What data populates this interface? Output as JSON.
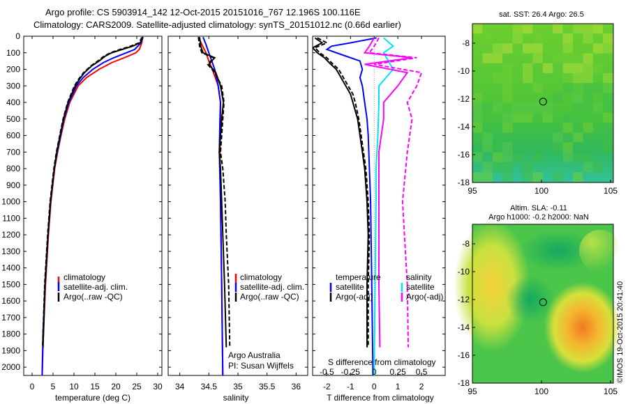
{
  "title_line1": "Argo profile: CS 5903914_142 12-Oct-2015 20151016_767 12.196S 100.116E",
  "title_line2": "Climatology: CARS2009. Satellite-adjusted climatology: synTS_20151012.nc (0.66d earlier)",
  "stamp": "©IMOS 19-Oct-2015 20:41:40",
  "colors": {
    "climatology": "#ff0000",
    "satellite": "#0000ff",
    "argo": "#000000",
    "sal_sat": "#00e5ee",
    "sal_argo": "#ff00ff",
    "map_mid": "#3cbf3c"
  },
  "chart_data": [
    {
      "type": "line",
      "id": "temperature",
      "xlabel": "temperature (deg C)",
      "xlim": [
        -2,
        31
      ],
      "xticks": [
        0,
        5,
        10,
        15,
        20,
        25,
        30
      ],
      "ylim": [
        2050,
        0
      ],
      "yticks": [
        0,
        100,
        200,
        300,
        400,
        500,
        600,
        700,
        800,
        900,
        1000,
        1100,
        1200,
        1300,
        1400,
        1500,
        1600,
        1700,
        1800,
        1900,
        2000
      ],
      "legend": [
        "climatology",
        "satellite-adj. clim.",
        "Argo(..raw -QC)"
      ],
      "series": [
        {
          "name": "climatology",
          "color": "#ff0000",
          "dash": "",
          "depth": [
            5,
            40,
            80,
            100,
            130,
            160,
            200,
            250,
            300,
            400,
            500,
            600,
            700,
            800,
            1000,
            1200,
            1500,
            1800,
            2050
          ],
          "values": [
            26.4,
            26.2,
            25.6,
            24.8,
            22.0,
            19.0,
            16.0,
            13.0,
            11.0,
            9.0,
            7.8,
            6.9,
            6.1,
            5.4,
            4.5,
            3.9,
            3.2,
            2.7,
            2.4
          ]
        },
        {
          "name": "satellite-adj. clim.",
          "color": "#0000ff",
          "dash": "",
          "depth": [
            5,
            40,
            80,
            100,
            130,
            160,
            200,
            250,
            300,
            400,
            500,
            600,
            700,
            800,
            1000,
            1200,
            1500,
            1800,
            2050
          ],
          "values": [
            26.5,
            26.0,
            24.5,
            22.5,
            19.5,
            17.0,
            14.5,
            12.2,
            10.6,
            8.8,
            7.6,
            6.8,
            6.0,
            5.3,
            4.4,
            3.8,
            3.1,
            2.6,
            2.4
          ]
        },
        {
          "name": "Argo(..raw -QC)",
          "color": "#000000",
          "dash": "",
          "depth": [
            5,
            40,
            60,
            80,
            100,
            120,
            150,
            180,
            220,
            260,
            300,
            400,
            500,
            600,
            700,
            800,
            1000,
            1200,
            1500,
            1880
          ],
          "values": [
            26.5,
            25.8,
            24.0,
            21.5,
            19.0,
            17.5,
            16.0,
            14.2,
            12.5,
            11.3,
            10.3,
            8.6,
            7.5,
            6.7,
            5.9,
            5.3,
            4.4,
            3.8,
            3.1,
            2.6
          ]
        },
        {
          "name": "Argo(..raw -QC)",
          "color": "#000000",
          "dash": "6,3",
          "depth": [
            5,
            40,
            60,
            80,
            100,
            120,
            150,
            180,
            220,
            260,
            300,
            400,
            500,
            600,
            700,
            800,
            1000,
            1200,
            1500,
            1880
          ],
          "values": [
            26.3,
            25.5,
            23.5,
            21.0,
            18.7,
            17.2,
            15.7,
            14.0,
            12.3,
            11.1,
            10.1,
            8.5,
            7.4,
            6.6,
            5.8,
            5.2,
            4.3,
            3.7,
            3.0,
            2.5
          ]
        }
      ]
    },
    {
      "type": "line",
      "id": "salinity",
      "xlabel": "salinity",
      "xlim": [
        33.8,
        36.2
      ],
      "xticks": [
        34,
        34.5,
        35,
        35.5,
        36
      ],
      "ylim": [
        2050,
        0
      ],
      "legend": [
        "climatology",
        "satellite-adj. clim.",
        "Argo(..raw -QC)"
      ],
      "annotation": [
        "Argo Australia",
        "PI: Susan Wijffels"
      ],
      "series": [
        {
          "name": "climatology",
          "color": "#ff0000",
          "dash": "",
          "depth": [
            5,
            50,
            100,
            150,
            200,
            300,
            400,
            500,
            700,
            1000,
            1500,
            2050
          ],
          "values": [
            34.32,
            34.38,
            34.45,
            34.5,
            34.56,
            34.66,
            34.7,
            34.7,
            34.69,
            34.7,
            34.72,
            34.74
          ]
        },
        {
          "name": "satellite-adj. clim.",
          "color": "#0000ff",
          "dash": "",
          "depth": [
            5,
            50,
            100,
            150,
            200,
            300,
            400,
            500,
            700,
            1000,
            1500,
            2050
          ],
          "values": [
            34.4,
            34.45,
            34.5,
            34.55,
            34.6,
            34.66,
            34.7,
            34.69,
            34.68,
            34.7,
            34.72,
            34.74
          ]
        },
        {
          "name": "Argo(..raw -QC)",
          "color": "#000000",
          "dash": "",
          "depth": [
            5,
            60,
            100,
            130,
            170,
            220,
            300,
            400,
            500,
            600,
            700,
            800,
            1000,
            1200,
            1500,
            1880
          ],
          "values": [
            34.34,
            34.36,
            34.4,
            34.6,
            34.5,
            34.62,
            34.7,
            34.75,
            34.72,
            34.7,
            34.68,
            34.7,
            34.72,
            34.74,
            34.77,
            34.8
          ]
        },
        {
          "name": "Argo(..raw -QC)",
          "color": "#000000",
          "dash": "6,3",
          "depth": [
            5,
            60,
            100,
            130,
            170,
            220,
            300,
            400,
            500,
            600,
            700,
            800,
            1000,
            1200,
            1500,
            1880
          ],
          "values": [
            34.32,
            34.34,
            34.38,
            34.58,
            34.48,
            34.6,
            34.72,
            34.76,
            34.74,
            34.72,
            34.7,
            34.74,
            34.78,
            34.8,
            34.84,
            34.86
          ]
        }
      ]
    },
    {
      "type": "line",
      "id": "differences",
      "xlabel": "T difference from climatology",
      "xlabel_top": "S difference from climatology",
      "xlim": [
        -2.6,
        3.0
      ],
      "xticks": [
        -2,
        -1,
        0,
        1,
        2
      ],
      "xticks_sal": [
        "-0.5",
        "-0.25",
        "0",
        "0.25",
        "0.5"
      ],
      "ylim": [
        2050,
        0
      ],
      "legend_temperature": [
        "temperature",
        "satellite",
        "Argo(-adj)"
      ],
      "legend_salinity": [
        "salinity",
        "satellite",
        "Argo(-adj)"
      ],
      "series": [
        {
          "name": "satellite",
          "group": "temperature",
          "color": "#0000ff",
          "dash": "",
          "depth": [
            10,
            40,
            60,
            80,
            120,
            150,
            200,
            250,
            300,
            400,
            500,
            600,
            800,
            1000,
            1500,
            2050
          ],
          "values": [
            0.1,
            -1.0,
            -1.8,
            -2.0,
            -1.2,
            -0.6,
            -0.5,
            -0.6,
            -0.5,
            -0.4,
            -0.3,
            -0.25,
            -0.2,
            -0.15,
            -0.1,
            -0.05
          ]
        },
        {
          "name": "Argo(-adj)",
          "group": "temperature",
          "color": "#000000",
          "dash": "",
          "depth": [
            10,
            40,
            70,
            100,
            130,
            160,
            200,
            250,
            300,
            350,
            400,
            500,
            600,
            700,
            800,
            1000,
            1200,
            1500,
            1880
          ],
          "values": [
            -2.5,
            -2.2,
            -2.6,
            -2.4,
            -2.1,
            -1.9,
            -1.6,
            -1.4,
            -1.2,
            -1.0,
            -0.9,
            -0.7,
            -0.6,
            -0.5,
            -0.4,
            -0.3,
            -0.25,
            -0.3,
            -0.3
          ]
        },
        {
          "name": "Argo(-adj)",
          "group": "temperature",
          "color": "#000000",
          "dash": "6,3",
          "depth": [
            10,
            40,
            70,
            100,
            130,
            160,
            200,
            250,
            300,
            350,
            400,
            500,
            600,
            700,
            800,
            1000,
            1200,
            1500,
            1880
          ],
          "values": [
            -2.4,
            -2.0,
            -2.5,
            -2.3,
            -2.0,
            -1.8,
            -1.5,
            -1.3,
            -1.1,
            -0.9,
            -0.8,
            -0.65,
            -0.55,
            -0.45,
            -0.35,
            -0.25,
            -0.2,
            -0.25,
            -0.25
          ]
        },
        {
          "name": "satellite",
          "group": "salinity",
          "color": "#00e5ee",
          "dash": "",
          "depth": [
            10,
            60,
            100,
            150,
            200,
            300,
            400,
            600,
            800,
            1000,
            1500,
            2050
          ],
          "values": [
            0.1,
            0.2,
            0.1,
            0.15,
            0.2,
            0.05,
            0.05,
            0.04,
            0.02,
            0.02,
            0.01,
            0.0
          ]
        },
        {
          "name": "Argo(-adj)",
          "group": "salinity",
          "color": "#ff00ff",
          "dash": "",
          "depth": [
            10,
            60,
            100,
            130,
            170,
            220,
            300,
            400,
            500,
            700,
            1000,
            1500,
            1880
          ],
          "values": [
            0.0,
            -0.05,
            -0.1,
            0.4,
            -0.1,
            0.35,
            0.25,
            0.1,
            0.1,
            0.05,
            0.05,
            0.05,
            0.06
          ]
        },
        {
          "name": "Argo(-adj)",
          "group": "salinity",
          "color": "#ff00ff",
          "dash": "6,3",
          "depth": [
            10,
            60,
            100,
            130,
            170,
            220,
            300,
            400,
            500,
            700,
            1000,
            1500,
            1880
          ],
          "values": [
            0.05,
            0.0,
            -0.05,
            0.45,
            0.0,
            0.5,
            0.45,
            0.35,
            0.4,
            0.35,
            0.3,
            0.35,
            0.36
          ]
        }
      ]
    },
    {
      "type": "heatmap",
      "id": "sst_map",
      "title": "sat. SST: 26.4 Argo: 26.5",
      "xlim": [
        95,
        105.2
      ],
      "ylim": [
        -18,
        -6.6
      ],
      "xticks": [
        95,
        100,
        105
      ],
      "yticks": [
        -8,
        -10,
        -12,
        -14,
        -16,
        -18
      ],
      "marker": [
        100.116,
        -12.196
      ]
    },
    {
      "type": "heatmap",
      "id": "sla_map",
      "title_line1": "Altim. SLA: -0.11",
      "title_line2": "Argo h1000: -0.2 h2000: NaN",
      "xlim": [
        95,
        105.2
      ],
      "ylim": [
        -18,
        -6.6
      ],
      "xticks": [
        95,
        100,
        105
      ],
      "yticks": [
        -8,
        -10,
        -12,
        -14,
        -16,
        -18
      ],
      "marker": [
        100.116,
        -12.196
      ]
    }
  ]
}
